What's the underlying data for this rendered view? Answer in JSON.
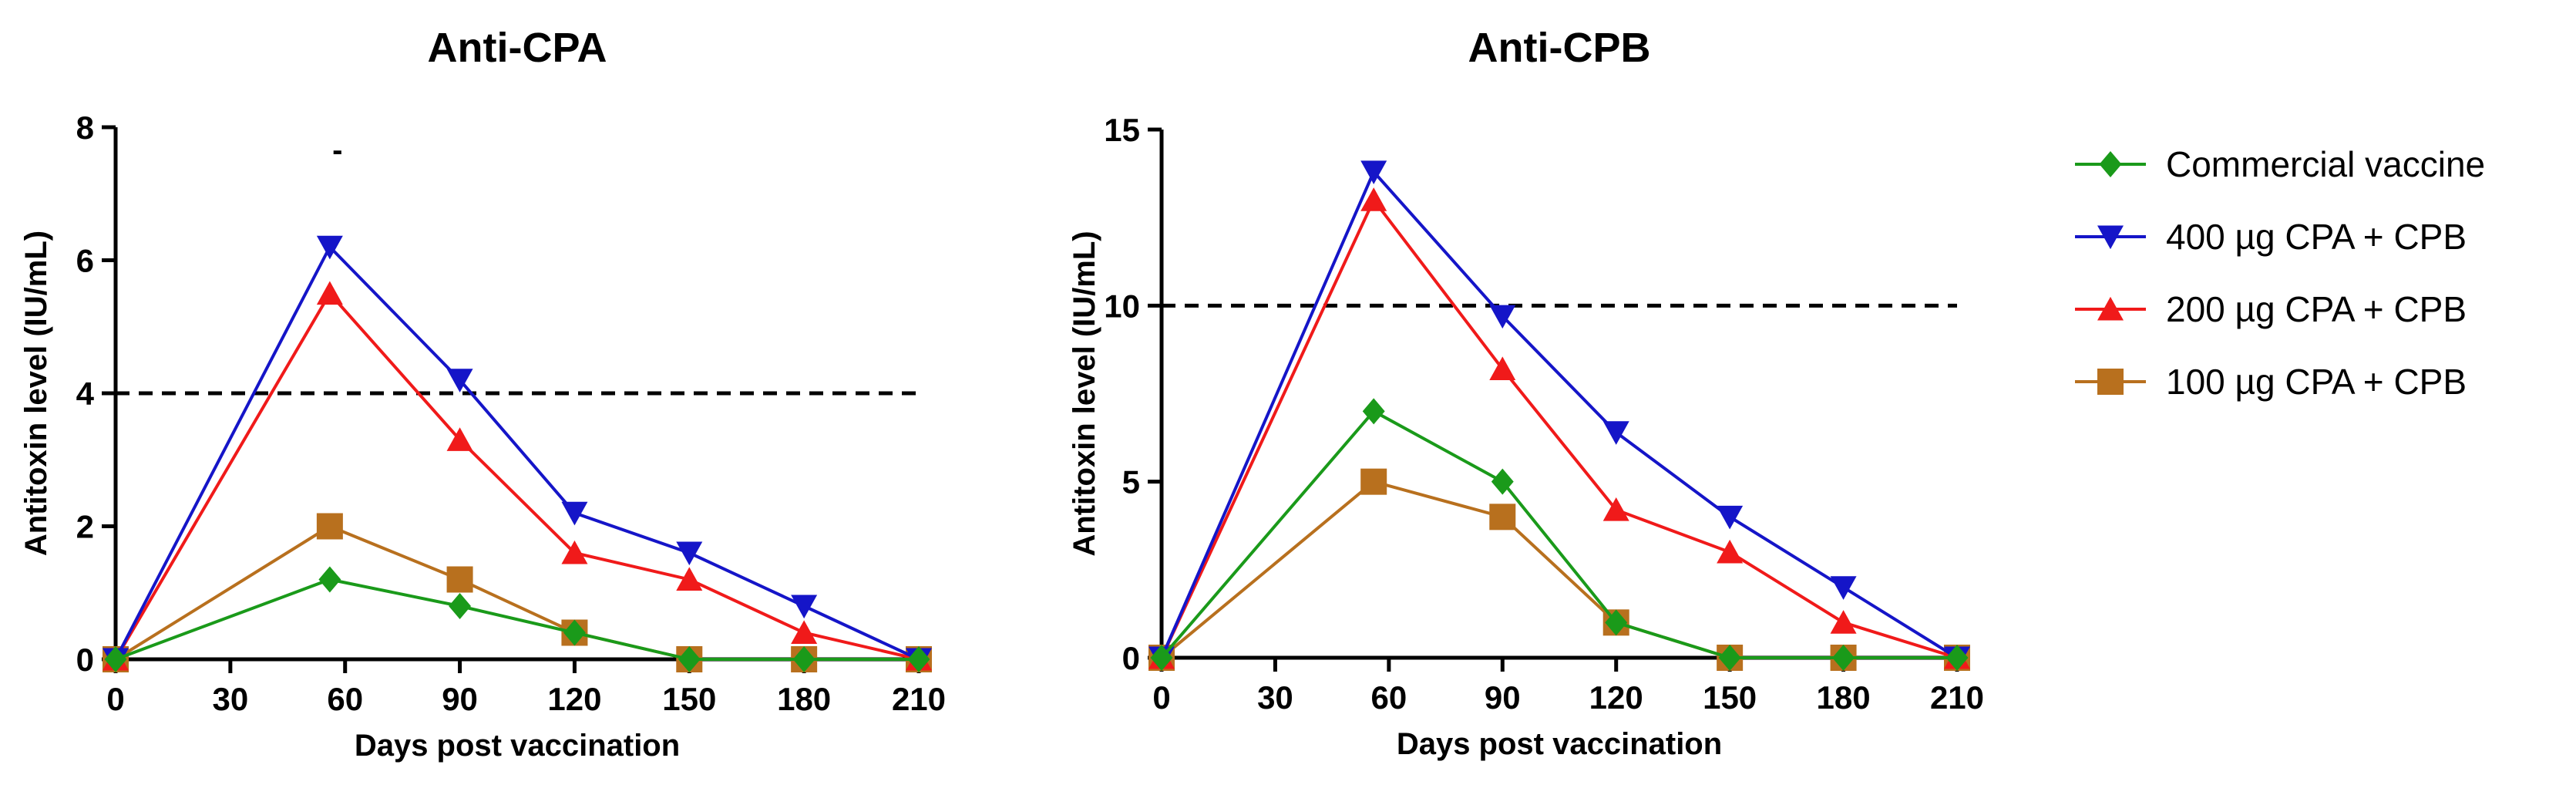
{
  "chart_data": [
    {
      "type": "line",
      "title": "Anti-CPA",
      "xlabel": "Days post vaccination",
      "ylabel": "Antitoxin level (IU/mL)",
      "xlim": [
        0,
        210
      ],
      "ylim": [
        0,
        8
      ],
      "xticks": [
        0,
        30,
        60,
        90,
        120,
        150,
        180,
        210
      ],
      "yticks": [
        0,
        2,
        4,
        6,
        8
      ],
      "threshold": 4,
      "annotation": "-",
      "x": [
        0,
        56,
        90,
        120,
        150,
        180,
        210
      ],
      "series": [
        {
          "name": "Commercial vaccine",
          "values": [
            0,
            1.2,
            0.8,
            0.4,
            0,
            0,
            0
          ]
        },
        {
          "name": "400 µg CPA + CPB",
          "values": [
            0,
            6.2,
            4.2,
            2.2,
            1.6,
            0.8,
            0
          ]
        },
        {
          "name": "200 µg CPA + CPB",
          "values": [
            0,
            5.5,
            3.3,
            1.6,
            1.2,
            0.4,
            0
          ]
        },
        {
          "name": "100 µg CPA + CPB",
          "values": [
            0,
            2.0,
            1.2,
            0.4,
            0,
            0,
            0
          ]
        }
      ]
    },
    {
      "type": "line",
      "title": "Anti-CPB",
      "xlabel": "Days post vaccination",
      "ylabel": "Antitoxin level (IU/mL)",
      "xlim": [
        0,
        210
      ],
      "ylim": [
        0,
        15
      ],
      "xticks": [
        0,
        30,
        60,
        90,
        120,
        150,
        180,
        210
      ],
      "yticks": [
        0,
        5,
        10,
        15
      ],
      "threshold": 10,
      "x": [
        0,
        56,
        90,
        120,
        150,
        180,
        210
      ],
      "series": [
        {
          "name": "Commercial vaccine",
          "values": [
            0,
            7,
            5,
            1,
            0,
            0,
            0
          ]
        },
        {
          "name": "400 µg CPA + CPB",
          "values": [
            0,
            13.8,
            9.7,
            6.4,
            4.0,
            2.0,
            0
          ]
        },
        {
          "name": "200 µg CPA + CPB",
          "values": [
            0,
            13.0,
            8.2,
            4.2,
            3.0,
            1.0,
            0
          ]
        },
        {
          "name": "100 µg CPA + CPB",
          "values": [
            0,
            5,
            4,
            1,
            0,
            0,
            0
          ]
        }
      ]
    }
  ],
  "legend": {
    "position": "right",
    "entries": [
      {
        "label": "Commercial vaccine",
        "color": "#1a9a1a",
        "marker": "diamond"
      },
      {
        "label": "400 µg CPA + CPB",
        "color": "#1515c8",
        "marker": "triangle-down"
      },
      {
        "label": "200 µg CPA + CPB",
        "color": "#f01a1a",
        "marker": "triangle-up"
      },
      {
        "label": "100 µg CPA + CPB",
        "color": "#b8701e",
        "marker": "square"
      }
    ]
  }
}
